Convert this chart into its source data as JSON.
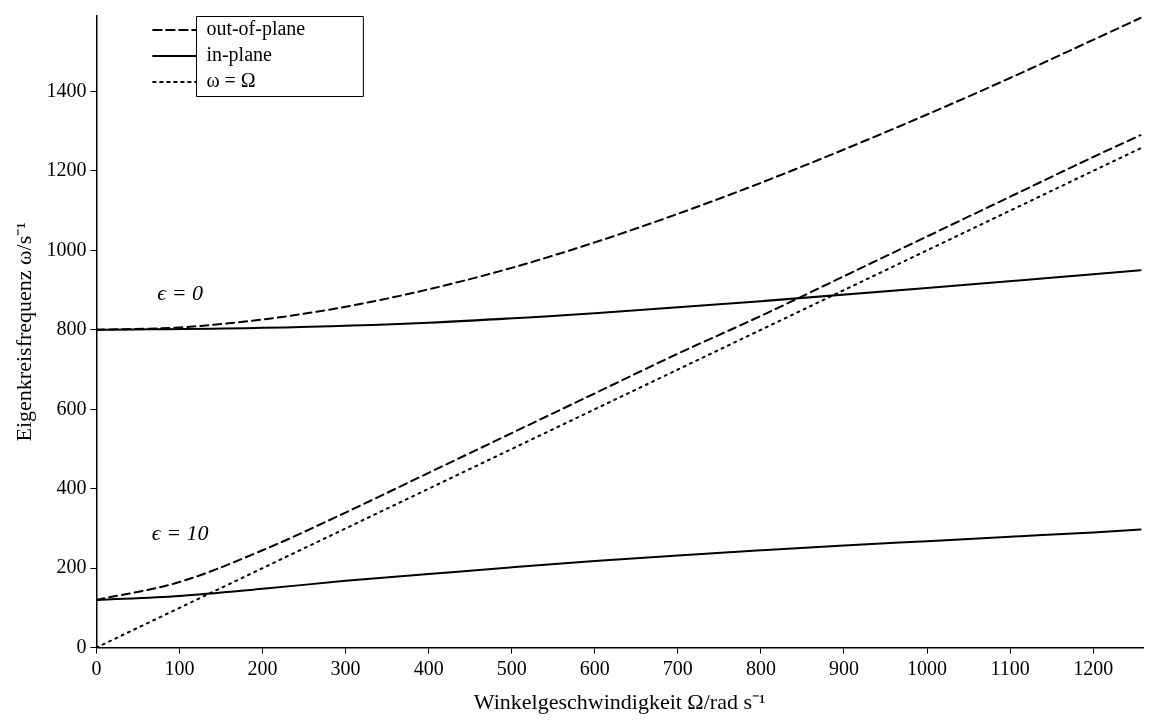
{
  "chart_data": {
    "type": "line",
    "xlabel": "Winkelgeschwindigkeit Ω/rad s⁻¹",
    "ylabel": "Eigenkreisfrequenz ω/s⁻¹",
    "xlim": [
      0,
      1260
    ],
    "ylim": [
      0,
      1590
    ],
    "xticks": [
      0,
      100,
      200,
      300,
      400,
      500,
      600,
      700,
      800,
      900,
      1000,
      1100,
      1200
    ],
    "yticks": [
      0,
      200,
      400,
      600,
      800,
      1000,
      1200,
      1400
    ],
    "grid": false,
    "legend": "top left",
    "marker": "none",
    "annotations": [
      "ϵ = 0",
      "ϵ = 10"
    ],
    "series": [
      {
        "name": "out-of-plane",
        "color": "#000000",
        "line_style": "dashed",
        "x": [
          0,
          100,
          200,
          300,
          400,
          500,
          600,
          700,
          800,
          900,
          1000,
          1100,
          1200,
          1257
        ],
        "values": [
          800,
          806,
          826,
          858,
          902,
          956,
          1020,
          1092,
          1170,
          1254,
          1342,
          1434,
          1530,
          1585
        ]
      },
      {
        "name": "in-plane",
        "color": "#000000",
        "line_style": "solid",
        "x": [
          0,
          200,
          400,
          600,
          800,
          1000,
          1200,
          1257
        ],
        "values": [
          800,
          805,
          818,
          842,
          872,
          905,
          940,
          950
        ]
      },
      {
        "name": "ω = Ω",
        "color": "#000000",
        "line_style": "dotted",
        "x": [
          0,
          1257
        ],
        "values": [
          0,
          1257
        ]
      },
      {
        "color": "#000000",
        "line_style": "dashed",
        "x": [
          0,
          100,
          200,
          300,
          400,
          500,
          600,
          700,
          800,
          900,
          1000,
          1100,
          1200,
          1257
        ],
        "values": [
          120,
          165,
          245,
          340,
          440,
          540,
          640,
          740,
          835,
          935,
          1035,
          1135,
          1235,
          1290
        ]
      },
      {
        "color": "#000000",
        "line_style": "solid",
        "x": [
          0,
          100,
          200,
          300,
          400,
          500,
          600,
          700,
          800,
          900,
          1000,
          1100,
          1200,
          1257
        ],
        "values": [
          120,
          130,
          148,
          168,
          185,
          202,
          218,
          232,
          245,
          257,
          268,
          279,
          290,
          297
        ]
      }
    ]
  }
}
